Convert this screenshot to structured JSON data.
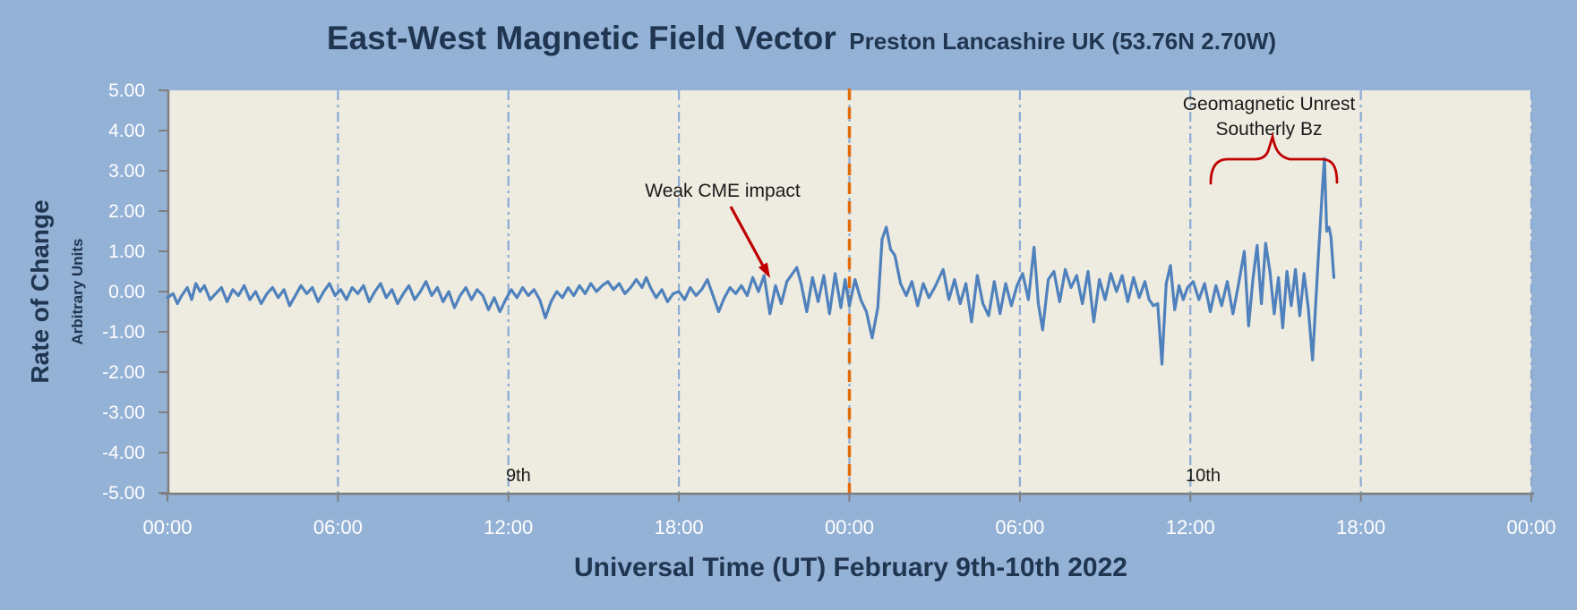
{
  "title": {
    "main": "East-West Magnetic Field Vector",
    "subtitle": "Preston Lancashire UK (53.76N 2.70W)"
  },
  "colors": {
    "page_bg": "#94b1d6",
    "plot_bg": "#eeebe0",
    "line": "#4f81bd",
    "gridline_blue": "#8aabd4",
    "gridline_orange": "#e36c0a",
    "axis_gray": "#7f7f7f",
    "title_navy": "#1f3550",
    "annotation_red": "#c00000",
    "annotation_black": "#1a1a1a",
    "tick_text": "#ffffff"
  },
  "annotations": {
    "cme": {
      "text": "Weak CME impact"
    },
    "unrest_line1": "Geomagnetic Unrest",
    "unrest_line2": "Southerly Bz"
  },
  "chart_data": {
    "type": "line",
    "title": "East-West Magnetic Field Vector Preston Lancashire UK (53.76N 2.70W)",
    "xlabel": "Universal Time (UT) February 9th-10th 2022",
    "ylabel": "Rate of Change",
    "ylabel_sub": "Arbitrary Units",
    "ylim": [
      -5,
      5
    ],
    "y_tick_labels": [
      "5.00",
      "4.00",
      "3.00",
      "2.00",
      "1.00",
      "0.00",
      "-1.00",
      "-2.00",
      "-3.00",
      "-4.00",
      "-5.00"
    ],
    "y_tick_values": [
      5,
      4,
      3,
      2,
      1,
      0,
      -1,
      -2,
      -3,
      -4,
      -5
    ],
    "x_tick_labels": [
      "00:00",
      "06:00",
      "12:00",
      "18:00",
      "00:00",
      "06:00",
      "12:00",
      "18:00",
      "00:00"
    ],
    "x_tick_hours": [
      0,
      6,
      12,
      18,
      24,
      30,
      36,
      42,
      48
    ],
    "xlim_hours": [
      0,
      48
    ],
    "gridlines_blue_hours": [
      6,
      12,
      18,
      24,
      30,
      36,
      42,
      48
    ],
    "gridline_orange_hour": 24,
    "day_labels": [
      {
        "text": "9th",
        "hour": 12.35,
        "value": -4.55
      },
      {
        "text": "10th",
        "hour": 36.45,
        "value": -4.55
      }
    ],
    "legend": "none",
    "series_name": "East-West magnetic field rate of change (arbitrary units)",
    "series": [
      [
        0,
        -0.15
      ],
      [
        0.2,
        -0.05
      ],
      [
        0.35,
        -0.3
      ],
      [
        0.5,
        -0.1
      ],
      [
        0.7,
        0.1
      ],
      [
        0.85,
        -0.2
      ],
      [
        1,
        0.2
      ],
      [
        1.15,
        0
      ],
      [
        1.3,
        0.15
      ],
      [
        1.5,
        -0.2
      ],
      [
        1.7,
        -0.05
      ],
      [
        1.9,
        0.1
      ],
      [
        2.1,
        -0.25
      ],
      [
        2.3,
        0.05
      ],
      [
        2.5,
        -0.1
      ],
      [
        2.7,
        0.15
      ],
      [
        2.9,
        -0.2
      ],
      [
        3.1,
        0
      ],
      [
        3.3,
        -0.3
      ],
      [
        3.5,
        -0.05
      ],
      [
        3.7,
        0.1
      ],
      [
        3.9,
        -0.15
      ],
      [
        4.1,
        0.05
      ],
      [
        4.3,
        -0.35
      ],
      [
        4.5,
        -0.1
      ],
      [
        4.7,
        0.15
      ],
      [
        4.9,
        -0.05
      ],
      [
        5.1,
        0.1
      ],
      [
        5.3,
        -0.25
      ],
      [
        5.5,
        0
      ],
      [
        5.7,
        0.2
      ],
      [
        5.9,
        -0.1
      ],
      [
        6.1,
        0.05
      ],
      [
        6.3,
        -0.2
      ],
      [
        6.5,
        0.1
      ],
      [
        6.7,
        -0.05
      ],
      [
        6.9,
        0.15
      ],
      [
        7.1,
        -0.25
      ],
      [
        7.3,
        0
      ],
      [
        7.5,
        0.2
      ],
      [
        7.7,
        -0.15
      ],
      [
        7.9,
        0.05
      ],
      [
        8.1,
        -0.3
      ],
      [
        8.3,
        -0.05
      ],
      [
        8.5,
        0.15
      ],
      [
        8.7,
        -0.2
      ],
      [
        8.9,
        0
      ],
      [
        9.1,
        0.25
      ],
      [
        9.3,
        -0.1
      ],
      [
        9.5,
        0.1
      ],
      [
        9.7,
        -0.25
      ],
      [
        9.9,
        0
      ],
      [
        10.1,
        -0.4
      ],
      [
        10.3,
        -0.1
      ],
      [
        10.5,
        0.1
      ],
      [
        10.7,
        -0.2
      ],
      [
        10.9,
        0.05
      ],
      [
        11.1,
        -0.1
      ],
      [
        11.3,
        -0.45
      ],
      [
        11.5,
        -0.15
      ],
      [
        11.7,
        -0.5
      ],
      [
        11.9,
        -0.2
      ],
      [
        12.1,
        0.05
      ],
      [
        12.3,
        -0.15
      ],
      [
        12.5,
        0.1
      ],
      [
        12.7,
        -0.1
      ],
      [
        12.9,
        0.05
      ],
      [
        13.1,
        -0.2
      ],
      [
        13.3,
        -0.65
      ],
      [
        13.5,
        -0.25
      ],
      [
        13.7,
        0
      ],
      [
        13.9,
        -0.15
      ],
      [
        14.1,
        0.1
      ],
      [
        14.3,
        -0.1
      ],
      [
        14.5,
        0.15
      ],
      [
        14.7,
        -0.05
      ],
      [
        14.9,
        0.2
      ],
      [
        15.1,
        0
      ],
      [
        15.3,
        0.15
      ],
      [
        15.5,
        0.25
      ],
      [
        15.7,
        0.05
      ],
      [
        15.9,
        0.2
      ],
      [
        16.1,
        -0.05
      ],
      [
        16.3,
        0.1
      ],
      [
        16.5,
        0.3
      ],
      [
        16.7,
        0.1
      ],
      [
        16.85,
        0.35
      ],
      [
        17,
        0.1
      ],
      [
        17.2,
        -0.15
      ],
      [
        17.4,
        0.05
      ],
      [
        17.6,
        -0.25
      ],
      [
        17.8,
        -0.05
      ],
      [
        18,
        0
      ],
      [
        18.2,
        -0.2
      ],
      [
        18.4,
        0.1
      ],
      [
        18.6,
        -0.1
      ],
      [
        18.8,
        0.05
      ],
      [
        19,
        0.3
      ],
      [
        19.2,
        -0.1
      ],
      [
        19.4,
        -0.5
      ],
      [
        19.6,
        -0.15
      ],
      [
        19.8,
        0.1
      ],
      [
        20,
        -0.05
      ],
      [
        20.2,
        0.15
      ],
      [
        20.4,
        -0.1
      ],
      [
        20.6,
        0.35
      ],
      [
        20.8,
        0
      ],
      [
        21,
        0.4
      ],
      [
        21.2,
        -0.55
      ],
      [
        21.4,
        0.15
      ],
      [
        21.6,
        -0.3
      ],
      [
        21.8,
        0.25
      ],
      [
        22,
        0.45
      ],
      [
        22.15,
        0.6
      ],
      [
        22.3,
        0.2
      ],
      [
        22.5,
        -0.5
      ],
      [
        22.7,
        0.35
      ],
      [
        22.9,
        -0.25
      ],
      [
        23.1,
        0.4
      ],
      [
        23.3,
        -0.55
      ],
      [
        23.5,
        0.45
      ],
      [
        23.7,
        -0.4
      ],
      [
        23.85,
        0.3
      ],
      [
        24,
        -0.35
      ],
      [
        24.2,
        0.3
      ],
      [
        24.4,
        -0.2
      ],
      [
        24.6,
        -0.5
      ],
      [
        24.8,
        -1.15
      ],
      [
        25,
        -0.4
      ],
      [
        25.15,
        1.3
      ],
      [
        25.3,
        1.6
      ],
      [
        25.45,
        1.05
      ],
      [
        25.6,
        0.9
      ],
      [
        25.8,
        0.2
      ],
      [
        26,
        -0.1
      ],
      [
        26.2,
        0.25
      ],
      [
        26.4,
        -0.35
      ],
      [
        26.6,
        0.2
      ],
      [
        26.8,
        -0.15
      ],
      [
        27,
        0.1
      ],
      [
        27.3,
        0.55
      ],
      [
        27.5,
        -0.2
      ],
      [
        27.7,
        0.3
      ],
      [
        27.9,
        -0.3
      ],
      [
        28.1,
        0.2
      ],
      [
        28.3,
        -0.75
      ],
      [
        28.5,
        0.4
      ],
      [
        28.7,
        -0.3
      ],
      [
        28.9,
        -0.6
      ],
      [
        29.1,
        0.25
      ],
      [
        29.3,
        -0.55
      ],
      [
        29.5,
        0.2
      ],
      [
        29.7,
        -0.35
      ],
      [
        29.9,
        0.15
      ],
      [
        30.1,
        0.45
      ],
      [
        30.3,
        -0.2
      ],
      [
        30.5,
        1.1
      ],
      [
        30.65,
        -0.3
      ],
      [
        30.8,
        -0.95
      ],
      [
        31,
        0.3
      ],
      [
        31.2,
        0.5
      ],
      [
        31.4,
        -0.25
      ],
      [
        31.6,
        0.55
      ],
      [
        31.8,
        0.1
      ],
      [
        32,
        0.4
      ],
      [
        32.2,
        -0.3
      ],
      [
        32.4,
        0.5
      ],
      [
        32.6,
        -0.75
      ],
      [
        32.8,
        0.3
      ],
      [
        33,
        -0.2
      ],
      [
        33.2,
        0.45
      ],
      [
        33.4,
        0
      ],
      [
        33.6,
        0.4
      ],
      [
        33.8,
        -0.25
      ],
      [
        34,
        0.35
      ],
      [
        34.2,
        -0.15
      ],
      [
        34.4,
        0.25
      ],
      [
        34.55,
        -0.2
      ],
      [
        34.7,
        -0.35
      ],
      [
        34.85,
        -0.3
      ],
      [
        35,
        -1.8
      ],
      [
        35.15,
        0.2
      ],
      [
        35.3,
        0.65
      ],
      [
        35.45,
        -0.45
      ],
      [
        35.6,
        0.15
      ],
      [
        35.75,
        -0.2
      ],
      [
        35.9,
        0.1
      ],
      [
        36.1,
        0.25
      ],
      [
        36.3,
        -0.2
      ],
      [
        36.5,
        0.2
      ],
      [
        36.7,
        -0.5
      ],
      [
        36.9,
        0.15
      ],
      [
        37.1,
        -0.35
      ],
      [
        37.3,
        0.25
      ],
      [
        37.5,
        -0.55
      ],
      [
        37.7,
        0.2
      ],
      [
        37.9,
        1
      ],
      [
        38.05,
        -0.85
      ],
      [
        38.2,
        0.3
      ],
      [
        38.35,
        1.15
      ],
      [
        38.5,
        -0.3
      ],
      [
        38.65,
        1.2
      ],
      [
        38.8,
        0.5
      ],
      [
        38.95,
        -0.55
      ],
      [
        39.1,
        0.35
      ],
      [
        39.25,
        -0.9
      ],
      [
        39.4,
        0.5
      ],
      [
        39.55,
        -0.35
      ],
      [
        39.7,
        0.55
      ],
      [
        39.85,
        -0.6
      ],
      [
        40,
        0.45
      ],
      [
        40.15,
        -0.4
      ],
      [
        40.3,
        -1.7
      ],
      [
        40.5,
        0.8
      ],
      [
        40.65,
        2.6
      ],
      [
        40.72,
        3.3
      ],
      [
        40.8,
        1.5
      ],
      [
        40.88,
        1.6
      ],
      [
        40.95,
        1.35
      ],
      [
        41.05,
        0.35
      ]
    ],
    "annotations": [
      {
        "text": "Weak CME impact",
        "type": "arrow",
        "points_to_hour": 21.1,
        "points_to_value": 0.55
      },
      {
        "text": "Geomagnetic Unrest Southerly Bz",
        "type": "brace",
        "span_hours": [
          36.7,
          41.2
        ]
      }
    ]
  }
}
